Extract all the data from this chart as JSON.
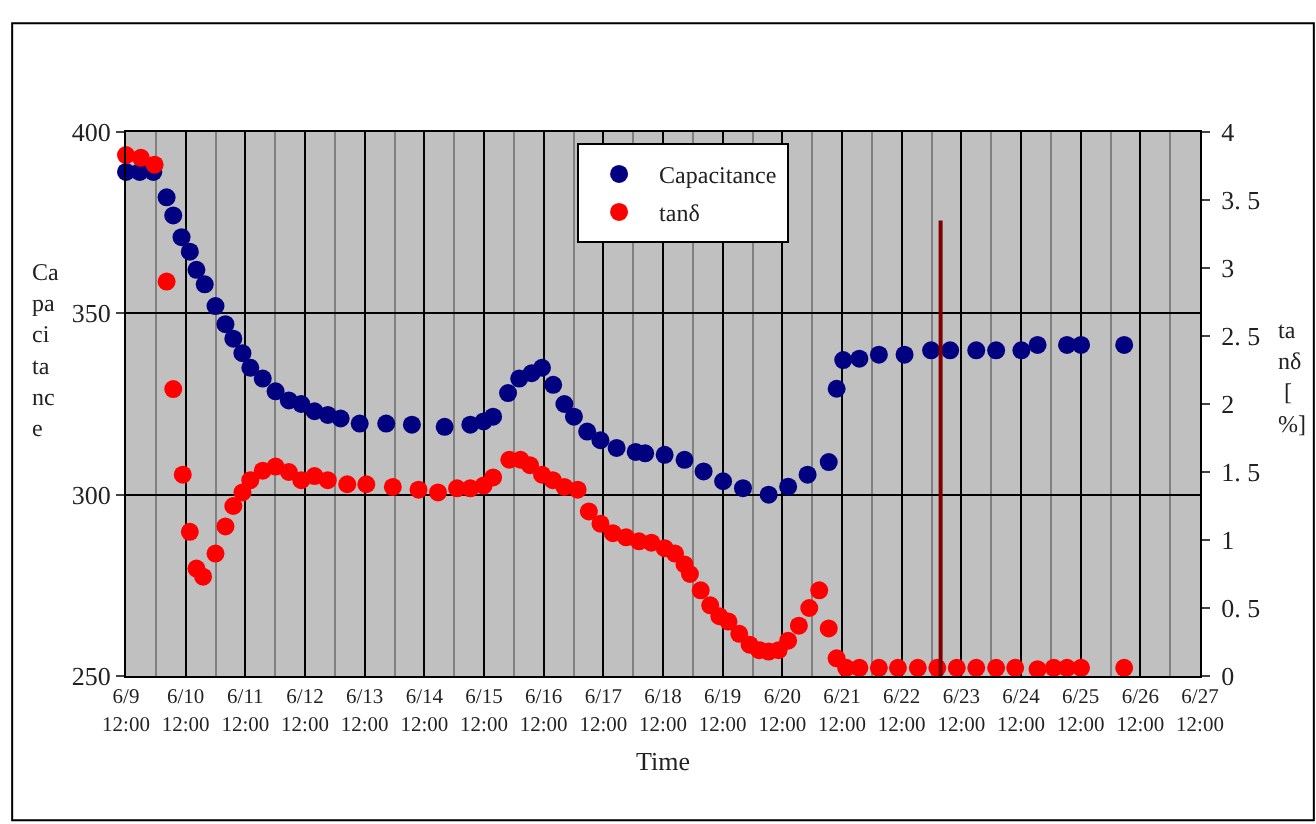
{
  "chart_data": {
    "type": "scatter",
    "xlabel": "Time",
    "ylabel": "Capacitance",
    "y2label": "tanδ [%]",
    "x": [
      "--06-09T12:00",
      "--06-09T17:30",
      "--06-09T23:00",
      "--06-10T04:20",
      "--06-10T07:00",
      "--06-10T10:20",
      "--06-10T13:40",
      "--06-10T16:20",
      "--06-10T19:40",
      "--06-11T00:00",
      "--06-11T04:00",
      "--06-11T07:10",
      "--06-11T10:50",
      "--06-11T14:00",
      "--06-11T19:00",
      "--06-12T00:10",
      "--06-12T05:30",
      "--06-12T10:30",
      "--06-12T15:50",
      "--06-12T21:10",
      "--06-13T02:20",
      "--06-13T10:00",
      "--06-13T20:40",
      "--06-14T07:00",
      "--06-14T20:10",
      "--06-15T06:30",
      "--06-15T11:50",
      "--06-15T15:40",
      "--06-15T21:40",
      "--06-16T02:10",
      "--06-16T07:10",
      "--06-16T11:20",
      "--06-16T15:50",
      "--06-16T20:20",
      "--06-17T00:10",
      "--06-17T05:30",
      "--06-17T10:50",
      "--06-17T17:20",
      "--06-18T01:00",
      "--06-18T04:50",
      "--06-18T12:40",
      "--06-18T20:40",
      "--06-19T04:20",
      "--06-19T12:10",
      "--06-19T20:10",
      "--06-20T06:30",
      "--06-20T14:20",
      "--06-20T22:10",
      "--06-21T06:40",
      "--06-21T09:50",
      "--06-21T12:30",
      "--06-21T19:00",
      "--06-22T02:50",
      "--06-22T13:10",
      "--06-22T23:50",
      "--06-23T07:30",
      "--06-23T18:00",
      "--06-24T02:00",
      "--06-24T12:10",
      "--06-24T18:40",
      "--06-25T06:30",
      "--06-25T12:10",
      "--06-26T05:30"
    ],
    "series": [
      {
        "name": "Capacitance",
        "color": "#000080",
        "values": [
          389,
          389,
          389,
          382,
          377,
          371,
          367,
          362,
          358,
          352,
          347,
          343,
          339,
          335,
          332,
          328.5,
          326,
          325,
          323,
          322,
          321,
          319.6,
          319.6,
          319.3,
          318.7,
          319.3,
          320.2,
          321.5,
          328,
          332,
          333.5,
          335,
          330.3,
          325,
          321.5,
          317.4,
          315,
          312.9,
          311.8,
          311.4,
          311,
          309.6,
          306.4,
          303.7,
          301.8,
          300,
          302.2,
          305.5,
          309,
          329.2,
          337.1,
          337.5,
          338.6,
          338.6,
          339.8,
          339.8,
          339.8,
          339.8,
          339.8,
          341.3,
          341.3,
          341.3,
          341.3
        ]
      },
      {
        "name": "tanδ",
        "color": "#ff0000",
        "axis": "y2",
        "x": [
          "--06-09T12:00",
          "--06-09T18:00",
          "--06-09T23:30",
          "--06-10T04:20",
          "--06-10T07:00",
          "--06-10T10:50",
          "--06-10T13:40",
          "--06-10T16:20",
          "--06-10T19:00",
          "--06-11T00:00",
          "--06-11T04:00",
          "--06-11T07:10",
          "--06-11T10:50",
          "--06-11T14:00",
          "--06-11T19:00",
          "--06-12T00:10",
          "--06-12T05:30",
          "--06-12T10:30",
          "--06-12T15:50",
          "--06-12T21:10",
          "--06-13T05:00",
          "--06-13T12:40",
          "--06-13T23:20",
          "--06-14T09:40",
          "--06-14T17:30",
          "--06-15T01:10",
          "--06-15T06:30",
          "--06-15T11:50",
          "--06-15T15:40",
          "--06-15T22:10",
          "--06-16T02:40",
          "--06-16T06:30",
          "--06-16T11:20",
          "--06-16T15:40",
          "--06-16T20:20",
          "--06-17T01:40",
          "--06-17T06:10",
          "--06-17T10:50",
          "--06-17T15:50",
          "--06-17T21:10",
          "--06-18T02:20",
          "--06-18T07:20",
          "--06-18T12:40",
          "--06-18T16:50",
          "--06-18T20:40",
          "--06-18T22:50",
          "--06-19T03:10",
          "--06-19T07:00",
          "--06-19T10:40",
          "--06-19T14:20",
          "--06-19T18:40",
          "--06-19T22:50",
          "--06-20T02:40",
          "--06-20T06:30",
          "--06-20T10:30",
          "--06-20T14:20",
          "--06-20T18:40",
          "--06-20T22:50",
          "--06-21T02:50",
          "--06-21T06:40",
          "--06-21T09:50",
          "--06-21T13:40",
          "--06-21T19:00",
          "--06-22T02:50",
          "--06-22T10:30",
          "--06-22T18:30",
          "--06-23T02:20",
          "--06-23T10:10",
          "--06-23T18:00",
          "--06-24T02:00",
          "--06-24T09:40",
          "--06-24T18:40",
          "--06-25T01:10",
          "--06-25T06:30",
          "--06-25T12:10",
          "--06-26T05:30"
        ],
        "values": [
          3.83,
          3.81,
          3.76,
          2.9,
          2.11,
          1.48,
          1.06,
          0.79,
          0.73,
          0.9,
          1.1,
          1.25,
          1.35,
          1.44,
          1.51,
          1.54,
          1.5,
          1.44,
          1.47,
          1.44,
          1.41,
          1.41,
          1.39,
          1.37,
          1.35,
          1.38,
          1.38,
          1.4,
          1.46,
          1.59,
          1.59,
          1.55,
          1.48,
          1.44,
          1.39,
          1.37,
          1.21,
          1.12,
          1.05,
          1.02,
          0.99,
          0.98,
          0.94,
          0.9,
          0.82,
          0.75,
          0.63,
          0.52,
          0.44,
          0.4,
          0.31,
          0.23,
          0.19,
          0.18,
          0.19,
          0.26,
          0.37,
          0.5,
          0.63,
          0.35,
          0.13,
          0.06,
          0.06,
          0.06,
          0.06,
          0.06,
          0.06,
          0.06,
          0.06,
          0.06,
          0.06,
          0.05,
          0.06,
          0.06,
          0.06,
          0.06
        ]
      },
      {
        "type": "line",
        "color": "#800000",
        "axis": "y2",
        "marker": "none",
        "x": [
          "--06-23T03:40",
          "--06-23T03:40"
        ],
        "values": [
          0,
          3.35
        ]
      }
    ],
    "xlim": [
      "--06-09T12:00",
      "--06-27T12:00"
    ],
    "xticks": [
      {
        "value": "--06-09T12:00",
        "label": "6/9\n12:00"
      },
      {
        "value": "--06-10T12:00",
        "label": "6/10\n12:00"
      },
      {
        "value": "--06-11T12:00",
        "label": "6/11\n12:00"
      },
      {
        "value": "--06-12T12:00",
        "label": "6/12\n12:00"
      },
      {
        "value": "--06-13T12:00",
        "label": "6/13\n12:00"
      },
      {
        "value": "--06-14T12:00",
        "label": "6/14\n12:00"
      },
      {
        "value": "--06-15T12:00",
        "label": "6/15\n12:00"
      },
      {
        "value": "--06-16T12:00",
        "label": "6/16\n12:00"
      },
      {
        "value": "--06-17T12:00",
        "label": "6/17\n12:00"
      },
      {
        "value": "--06-18T12:00",
        "label": "6/18\n12:00"
      },
      {
        "value": "--06-19T12:00",
        "label": "6/19\n12:00"
      },
      {
        "value": "--06-20T12:00",
        "label": "6/20\n12:00"
      },
      {
        "value": "--06-21T12:00",
        "label": "6/21\n12:00"
      },
      {
        "value": "--06-22T12:00",
        "label": "6/22\n12:00"
      },
      {
        "value": "--06-23T12:00",
        "label": "6/23\n12:00"
      },
      {
        "value": "--06-24T12:00",
        "label": "6/24\n12:00"
      },
      {
        "value": "--06-25T12:00",
        "label": "6/25\n12:00"
      },
      {
        "value": "--06-26T12:00",
        "label": "6/26\n12:00"
      },
      {
        "value": "--06-27T12:00",
        "label": "6/27\n12:00"
      }
    ],
    "ylim": [
      250,
      400
    ],
    "yticks": [
      250,
      300,
      350,
      400
    ],
    "y2lim": [
      0,
      4
    ],
    "y2ticks": [
      0,
      {
        "value": 0.5,
        "label": "0. 5"
      },
      1,
      {
        "value": 1.5,
        "label": "1. 5"
      },
      2,
      {
        "value": 2.5,
        "label": "2. 5"
      },
      3,
      {
        "value": 3.5,
        "label": "3. 5"
      },
      4
    ],
    "grid": true,
    "legend": "top",
    "marker": "circle"
  }
}
